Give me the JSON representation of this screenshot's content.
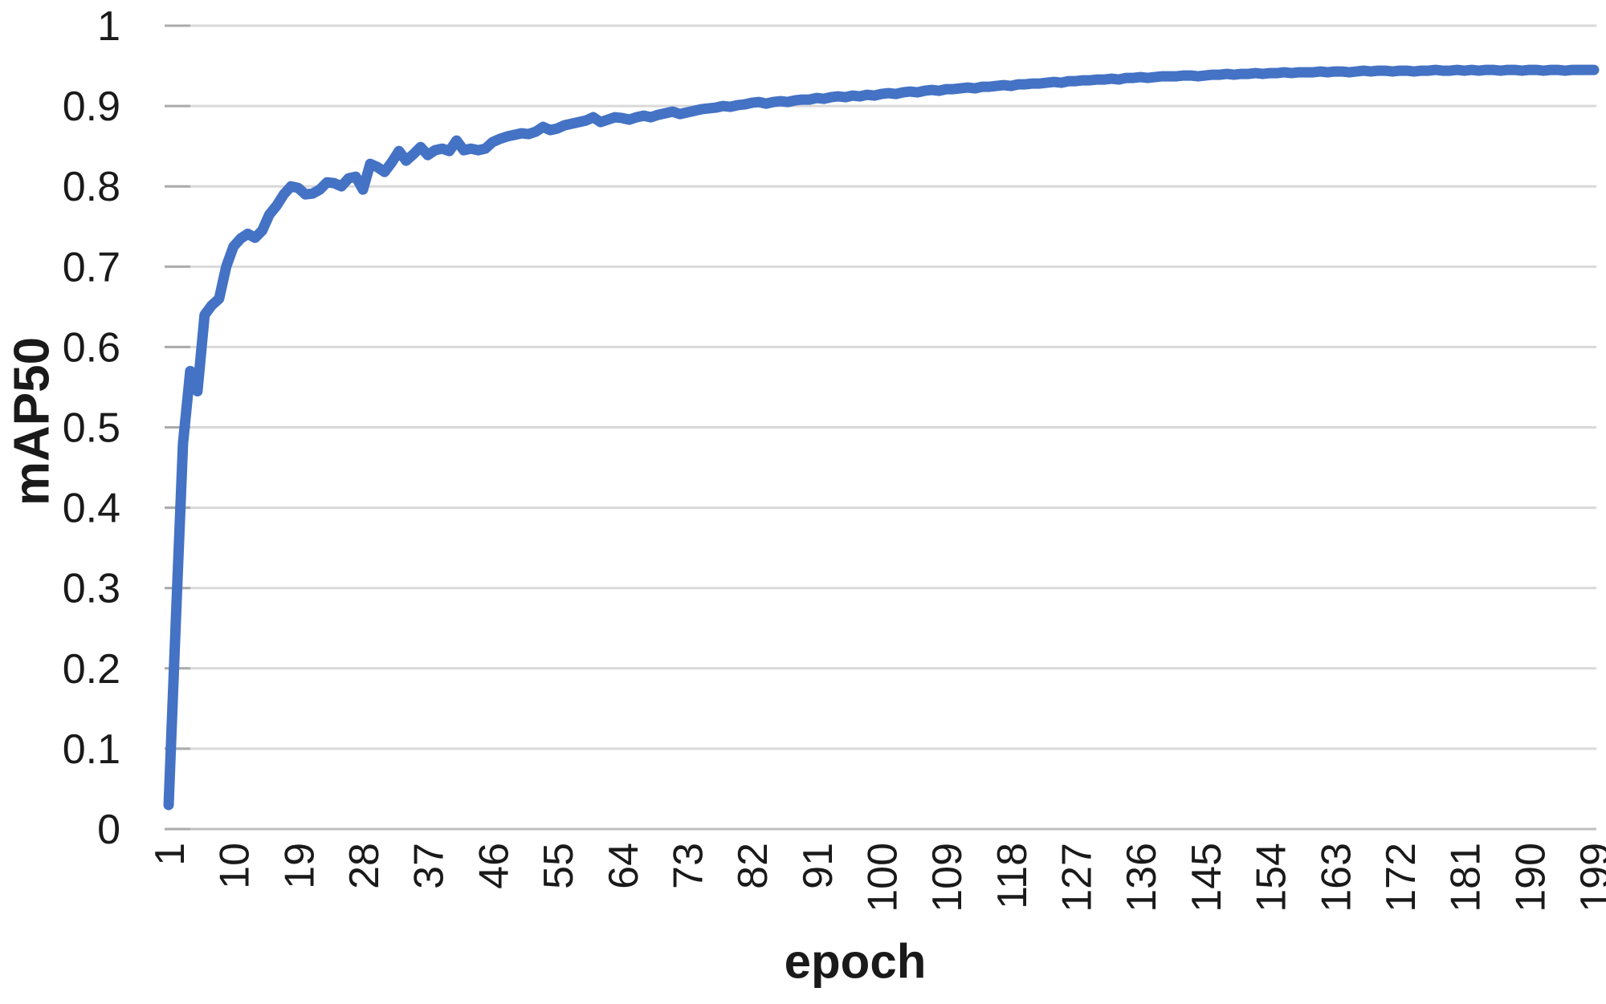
{
  "chart": {
    "x_axis_title": "epoch",
    "y_axis_title": "mAP50",
    "y_tick_labels": [
      "1",
      "0.9",
      "0.8",
      "0.7",
      "0.6",
      "0.5",
      "0.4",
      "0.3",
      "0.2",
      "0.1",
      "0"
    ],
    "x_tick_labels": [
      "1",
      "10",
      "19",
      "28",
      "37",
      "46",
      "55",
      "64",
      "73",
      "82",
      "91",
      "100",
      "109",
      "118",
      "127",
      "136",
      "145",
      "154",
      "163",
      "172",
      "181",
      "190",
      "199"
    ],
    "colors": {
      "line": "#4472C4",
      "gridline": "#D9D9D9",
      "axis_line": "#BFBFBF",
      "tick_mark": "#ABABAB",
      "text": "#1a1a1a",
      "background": "#ffffff"
    }
  },
  "chart_data": {
    "type": "line",
    "title": "",
    "xlabel": "epoch",
    "ylabel": "mAP50",
    "ylim": [
      0,
      1
    ],
    "y_tick_step": 0.1,
    "grid": "horizontal",
    "legend": "none",
    "epoch_start": 1,
    "epoch_step": 1,
    "epoch_end": 199,
    "x_tick_values": [
      1,
      10,
      19,
      28,
      37,
      46,
      55,
      64,
      73,
      82,
      91,
      100,
      109,
      118,
      127,
      136,
      145,
      154,
      163,
      172,
      181,
      190,
      199
    ],
    "series": [
      {
        "name": "mAP50",
        "values": [
          0.03,
          0.26,
          0.48,
          0.57,
          0.545,
          0.64,
          0.652,
          0.66,
          0.7,
          0.725,
          0.735,
          0.741,
          0.736,
          0.745,
          0.765,
          0.776,
          0.79,
          0.8,
          0.798,
          0.79,
          0.791,
          0.796,
          0.805,
          0.804,
          0.8,
          0.81,
          0.812,
          0.796,
          0.828,
          0.824,
          0.818,
          0.83,
          0.844,
          0.832,
          0.84,
          0.849,
          0.839,
          0.845,
          0.847,
          0.844,
          0.857,
          0.845,
          0.847,
          0.845,
          0.847,
          0.855,
          0.859,
          0.862,
          0.864,
          0.866,
          0.865,
          0.868,
          0.874,
          0.87,
          0.872,
          0.876,
          0.878,
          0.88,
          0.882,
          0.886,
          0.88,
          0.883,
          0.886,
          0.885,
          0.883,
          0.886,
          0.888,
          0.886,
          0.889,
          0.891,
          0.893,
          0.89,
          0.892,
          0.894,
          0.896,
          0.897,
          0.898,
          0.9,
          0.899,
          0.901,
          0.902,
          0.904,
          0.905,
          0.903,
          0.905,
          0.906,
          0.905,
          0.907,
          0.908,
          0.908,
          0.91,
          0.909,
          0.911,
          0.912,
          0.911,
          0.913,
          0.912,
          0.914,
          0.913,
          0.915,
          0.916,
          0.915,
          0.917,
          0.918,
          0.917,
          0.919,
          0.92,
          0.919,
          0.921,
          0.921,
          0.922,
          0.923,
          0.922,
          0.924,
          0.924,
          0.925,
          0.926,
          0.925,
          0.927,
          0.927,
          0.928,
          0.928,
          0.929,
          0.93,
          0.929,
          0.931,
          0.931,
          0.932,
          0.932,
          0.933,
          0.933,
          0.934,
          0.933,
          0.935,
          0.935,
          0.936,
          0.935,
          0.936,
          0.937,
          0.937,
          0.937,
          0.938,
          0.938,
          0.937,
          0.938,
          0.939,
          0.939,
          0.94,
          0.939,
          0.94,
          0.94,
          0.941,
          0.94,
          0.941,
          0.941,
          0.942,
          0.941,
          0.942,
          0.942,
          0.942,
          0.943,
          0.942,
          0.943,
          0.943,
          0.942,
          0.943,
          0.944,
          0.943,
          0.944,
          0.944,
          0.943,
          0.944,
          0.944,
          0.943,
          0.944,
          0.944,
          0.945,
          0.944,
          0.944,
          0.945,
          0.944,
          0.945,
          0.944,
          0.945,
          0.945,
          0.944,
          0.945,
          0.945,
          0.944,
          0.945,
          0.945,
          0.944,
          0.945,
          0.945,
          0.944,
          0.945,
          0.945,
          0.945,
          0.945
        ]
      }
    ]
  }
}
